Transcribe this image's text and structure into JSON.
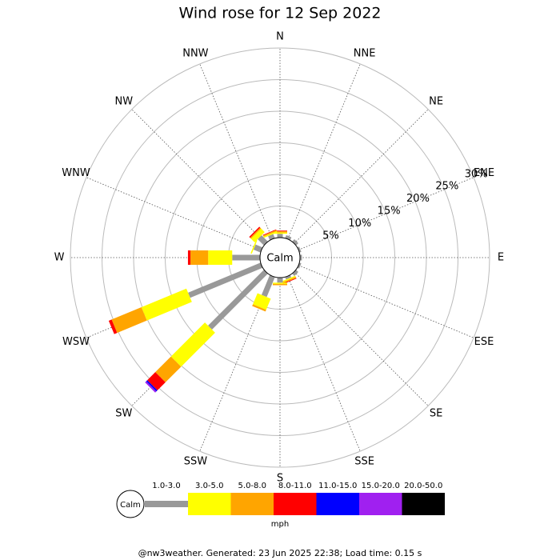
{
  "chart_data": {
    "type": "windrose",
    "title": "Wind rose for 12 Sep 2022",
    "calm_label": "Calm",
    "unit": "mph",
    "footer": "@nw3weather. Generated: 23 Jun 2025 22:38; Load time: 0.15 s",
    "categories": [
      "N",
      "NNE",
      "NE",
      "ENE",
      "E",
      "ESE",
      "SE",
      "SSE",
      "S",
      "SSW",
      "SW",
      "WSW",
      "W",
      "WNW",
      "NW",
      "NNW"
    ],
    "rlim": [
      0,
      30
    ],
    "rticks": [
      {
        "value": 5,
        "label": "5%"
      },
      {
        "value": 10,
        "label": "10%"
      },
      {
        "value": 15,
        "label": "15%"
      },
      {
        "value": 20,
        "label": "20%"
      },
      {
        "value": 25,
        "label": "25%"
      },
      {
        "value": 30,
        "label": "30%"
      }
    ],
    "series": [
      {
        "name": "1.0-3.0",
        "color": "#999999",
        "values": [
          0.6,
          0.5,
          0.5,
          0.3,
          0.3,
          0.3,
          0.5,
          0.4,
          0.8,
          3.4,
          12.5,
          12.4,
          4.4,
          1.2,
          1.4,
          0.7
        ]
      },
      {
        "name": "3.0-5.0",
        "color": "#ffff00",
        "values": [
          0.2,
          0,
          0,
          0,
          0,
          0,
          0,
          0.2,
          0.2,
          1.9,
          7.6,
          7.7,
          3.8,
          0.2,
          0.8,
          0.2
        ]
      },
      {
        "name": "5.0-8.0",
        "color": "#ffa500",
        "values": [
          0.2,
          0,
          0,
          0,
          0,
          0,
          0,
          0.2,
          0.2,
          0.3,
          3.5,
          5.1,
          2.8,
          0,
          0.2,
          0.2
        ]
      },
      {
        "name": "8.0-11.0",
        "color": "#ff0000",
        "values": [
          0.1,
          0,
          0,
          0,
          0,
          0,
          0,
          0.1,
          0,
          0,
          1.8,
          0.5,
          0.4,
          0,
          0.2,
          0.1
        ]
      },
      {
        "name": "11.0-15.0",
        "color": "#0000ff",
        "values": [
          0,
          0,
          0,
          0,
          0,
          0,
          0,
          0,
          0,
          0,
          0.25,
          0,
          0,
          0,
          0,
          0
        ]
      },
      {
        "name": "15.0-20.0",
        "color": "#a020f0",
        "values": [
          0,
          0,
          0,
          0,
          0,
          0,
          0,
          0,
          0,
          0,
          0.25,
          0,
          0,
          0,
          0,
          0
        ]
      },
      {
        "name": "20.0-50.0",
        "color": "#000000",
        "values": [
          0,
          0,
          0,
          0,
          0,
          0,
          0,
          0,
          0,
          0,
          0,
          0,
          0,
          0,
          0,
          0
        ]
      }
    ]
  }
}
